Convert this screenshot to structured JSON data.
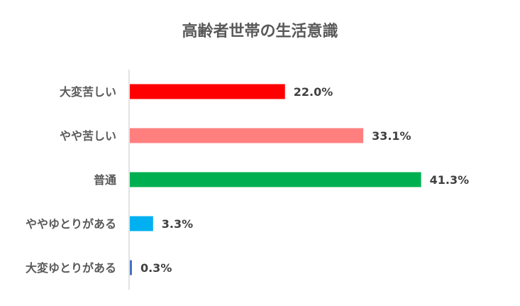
{
  "chart_data": {
    "type": "bar",
    "orientation": "horizontal",
    "title": "高齢者世帯の生活意識",
    "xlabel": "",
    "ylabel": "",
    "categories": [
      "大変苦しい",
      "やや苦しい",
      "普通",
      "ややゆとりがある",
      "大変ゆとりがある"
    ],
    "values": [
      22.0,
      33.1,
      41.3,
      3.3,
      0.3
    ],
    "value_labels": [
      "22.0%",
      "33.1%",
      "41.3%",
      "3.3%",
      "0.3%"
    ],
    "colors": [
      "#FF0000",
      "#FF7F7F",
      "#00B050",
      "#00B0F0",
      "#4472C4"
    ],
    "xlim": [
      0,
      52
    ],
    "grid": false,
    "legend": "none"
  }
}
